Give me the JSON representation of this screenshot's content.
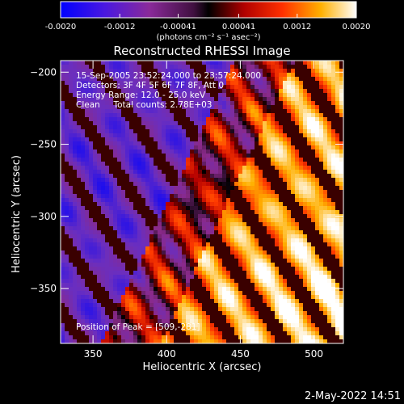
{
  "colorbar": {
    "tick_labels": [
      "-0.0020",
      "-0.0012",
      "-0.00041",
      "0.00041",
      "0.0012",
      "0.0020"
    ],
    "tick_values": [
      -0.002,
      -0.0012,
      -0.00041,
      0.00041,
      0.0012,
      0.002
    ],
    "range": [
      -0.002,
      0.002
    ],
    "unit_label": "(photons cm⁻² s⁻¹ asec⁻²)"
  },
  "chart_data": {
    "type": "heatmap",
    "title": "Reconstructed RHESSI Image",
    "xlabel": "Heliocentric X (arcsec)",
    "ylabel": "Heliocentric Y (arcsec)",
    "xlim": [
      328,
      520
    ],
    "ylim": [
      -388,
      -192
    ],
    "xticks": [
      350,
      400,
      450,
      500
    ],
    "yticks": [
      -200,
      -250,
      -300,
      -350
    ],
    "xtick_labels": [
      "350",
      "400",
      "450",
      "500"
    ],
    "ytick_labels": [
      "−200",
      "−250",
      "−300",
      "−350"
    ],
    "peak": [
      509,
      -281
    ],
    "colorscale": [
      "#0000ff",
      "#6a2ec0",
      "#8a2a8a",
      "#000000",
      "#b40000",
      "#ff3a00",
      "#ffb000",
      "#ffffff"
    ]
  },
  "annotations": {
    "time": "15-Sep-2005 23:52:24.000 to 23:57:24.000",
    "detectors": "Detectors: 3F 4F 5F 6F 7F 8F, Att 0",
    "energy": "Energy Range: 12.0 - 25.0 keV",
    "clean": "Clean     Total counts: 2.78E+03",
    "peak": "Position of Peak = [509,-281]"
  },
  "footer": {
    "timestamp": "2-May-2022 14:51"
  }
}
